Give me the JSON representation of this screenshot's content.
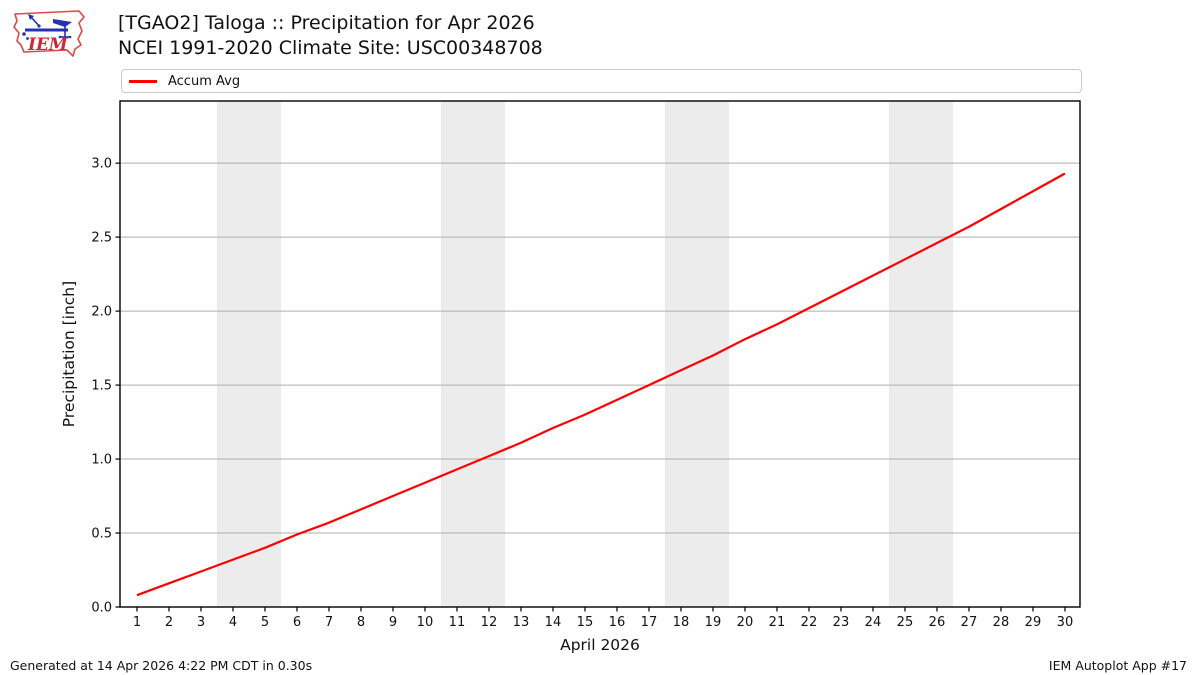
{
  "page": {
    "background": "#ffffff"
  },
  "logo": {
    "text": "IEM",
    "outline_color": "#e0474c",
    "vane_color": "#2430b4",
    "text_color": "#cc2936"
  },
  "header": {
    "title_line1": "[TGAO2] Taloga :: Precipitation for Apr 2026",
    "title_line2": "NCEI 1991-2020 Climate Site: USC00348708"
  },
  "legend": {
    "items": [
      {
        "label": "Accum Avg",
        "color": "#ff0000"
      }
    ]
  },
  "footer": {
    "left": "Generated at 14 Apr 2026 4:22 PM CDT in 0.30s",
    "right": "IEM Autoplot App #17"
  },
  "chart_data": {
    "type": "line",
    "title": "[TGAO2] Taloga :: Precipitation for Apr 2026",
    "subtitle": "NCEI 1991-2020 Climate Site: USC00348708",
    "xlabel": "April 2026",
    "ylabel": "Precipitation [inch]",
    "xlim": [
      0.47,
      30.47
    ],
    "ylim": [
      0,
      3.42
    ],
    "xticks": [
      1,
      2,
      3,
      4,
      5,
      6,
      7,
      8,
      9,
      10,
      11,
      12,
      13,
      14,
      15,
      16,
      17,
      18,
      19,
      20,
      21,
      22,
      23,
      24,
      25,
      26,
      27,
      28,
      29,
      30
    ],
    "yticks": [
      0.0,
      0.5,
      1.0,
      1.5,
      2.0,
      2.5,
      3.0
    ],
    "grid": "horizontal",
    "legend_position": "top",
    "grid_color": "#aeaeae",
    "band_color": "#ececec",
    "axis_color": "#000000",
    "weekend_bands": [
      [
        3.5,
        5.5
      ],
      [
        10.5,
        12.5
      ],
      [
        17.5,
        19.5
      ],
      [
        24.5,
        26.5
      ]
    ],
    "x": [
      1,
      2,
      3,
      4,
      5,
      6,
      7,
      8,
      9,
      10,
      11,
      12,
      13,
      14,
      15,
      16,
      17,
      18,
      19,
      20,
      21,
      22,
      23,
      24,
      25,
      26,
      27,
      28,
      29,
      30
    ],
    "series": [
      {
        "name": "Accum Avg",
        "color": "#ff0000",
        "values": [
          0.08,
          0.16,
          0.24,
          0.32,
          0.4,
          0.49,
          0.57,
          0.66,
          0.75,
          0.84,
          0.93,
          1.02,
          1.11,
          1.21,
          1.3,
          1.4,
          1.5,
          1.6,
          1.7,
          1.81,
          1.91,
          2.02,
          2.13,
          2.24,
          2.35,
          2.46,
          2.57,
          2.69,
          2.81,
          2.93
        ]
      }
    ]
  }
}
